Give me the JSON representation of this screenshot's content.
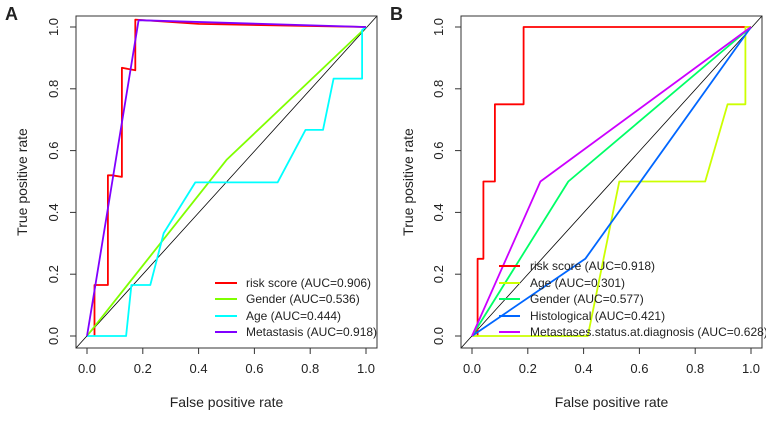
{
  "chart_data": [
    {
      "type": "line",
      "panel_label": "A",
      "xlabel": "False positive rate",
      "ylabel": "True positive rate",
      "xlim": [
        0,
        1
      ],
      "ylim": [
        0,
        1
      ],
      "xticks": [
        "0.0",
        "0.2",
        "0.4",
        "0.6",
        "0.8",
        "1.0"
      ],
      "yticks": [
        "0.0",
        "0.2",
        "0.4",
        "0.6",
        "0.8",
        "1.0"
      ],
      "reference_line": "diagonal",
      "legend_position": "bottom-right",
      "series": [
        {
          "name": "risk score (AUC=0.906)",
          "color": "#ff0000",
          "points": [
            [
              0.027,
              0
            ],
            [
              0.027,
              0.165
            ],
            [
              0.075,
              0.165
            ],
            [
              0.075,
              0.52
            ],
            [
              0.09,
              0.52
            ],
            [
              0.125,
              0.515
            ],
            [
              0.125,
              0.868
            ],
            [
              0.173,
              0.86
            ],
            [
              0.173,
              1.024
            ],
            [
              0.4,
              1.01
            ],
            [
              1,
              1
            ]
          ]
        },
        {
          "name": "Gender (AUC=0.536)",
          "color": "#7fff00",
          "points": [
            [
              0,
              0
            ],
            [
              0.5,
              0.57
            ],
            [
              0.99,
              0.99
            ]
          ]
        },
        {
          "name": "Age (AUC=0.444)",
          "color": "#00ffff",
          "points": [
            [
              0,
              0
            ],
            [
              0.14,
              0
            ],
            [
              0.159,
              0.165
            ],
            [
              0.227,
              0.165
            ],
            [
              0.275,
              0.333
            ],
            [
              0.388,
              0.497
            ],
            [
              0.683,
              0.497
            ],
            [
              0.783,
              0.667
            ],
            [
              0.846,
              0.667
            ],
            [
              0.884,
              0.833
            ],
            [
              0.986,
              0.833
            ],
            [
              0.986,
              0.99
            ],
            [
              1,
              1
            ]
          ]
        },
        {
          "name": "Metastasis (AUC=0.918)",
          "color": "#8000ff",
          "points": [
            [
              0,
              0
            ],
            [
              0.03,
              0.165
            ],
            [
              0.185,
              1.022
            ],
            [
              1,
              1
            ]
          ]
        }
      ]
    },
    {
      "type": "line",
      "panel_label": "B",
      "xlabel": "False positive rate",
      "ylabel": "True positive rate",
      "xlim": [
        0,
        1
      ],
      "ylim": [
        0,
        1
      ],
      "xticks": [
        "0.0",
        "0.2",
        "0.4",
        "0.6",
        "0.8",
        "1.0"
      ],
      "yticks": [
        "0.0",
        "0.2",
        "0.4",
        "0.6",
        "0.8",
        "1.0"
      ],
      "reference_line": "diagonal",
      "legend_position": "bottom-left",
      "series": [
        {
          "name": "risk score (AUC=0.918)",
          "color": "#ff0000",
          "points": [
            [
              0.02,
              0
            ],
            [
              0.02,
              0.25
            ],
            [
              0.041,
              0.25
            ],
            [
              0.041,
              0.5
            ],
            [
              0.082,
              0.5
            ],
            [
              0.082,
              0.75
            ],
            [
              0.185,
              0.75
            ],
            [
              0.185,
              1
            ],
            [
              1,
              1
            ]
          ]
        },
        {
          "name": "Age (AUC=0.301)",
          "color": "#ccff00",
          "points": [
            [
              0,
              0
            ],
            [
              0.415,
              0
            ],
            [
              0.528,
              0.5
            ],
            [
              0.836,
              0.5
            ],
            [
              0.916,
              0.75
            ],
            [
              0.98,
              0.75
            ],
            [
              0.98,
              1
            ],
            [
              1,
              1
            ]
          ]
        },
        {
          "name": "Gender (AUC=0.577)",
          "color": "#00ff66",
          "points": [
            [
              0,
              0
            ],
            [
              0.345,
              0.5
            ],
            [
              1,
              1
            ]
          ]
        },
        {
          "name": "Histological (AUC=0.421)",
          "color": "#0066ff",
          "points": [
            [
              0,
              0
            ],
            [
              0.406,
              0.25
            ],
            [
              1,
              1
            ]
          ]
        },
        {
          "name": "Metastases.status.at.diagnosis (AUC=0.628)",
          "color": "#cc00ff",
          "points": [
            [
              0,
              0
            ],
            [
              0.245,
              0.5
            ],
            [
              1,
              1
            ]
          ]
        }
      ]
    }
  ]
}
